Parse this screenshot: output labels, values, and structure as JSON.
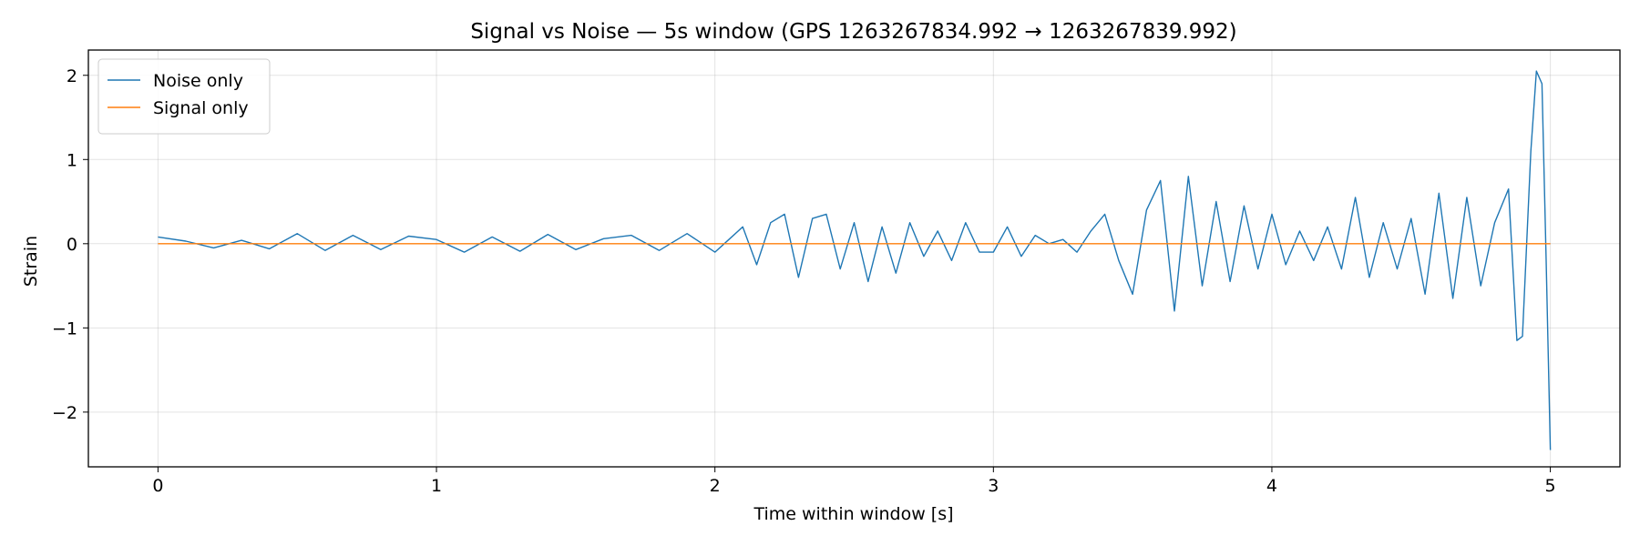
{
  "chart_data": {
    "type": "line",
    "title": "Signal vs Noise — 5s window (GPS 1263267834.992 → 1263267839.992)",
    "xlabel": "Time within window [s]",
    "ylabel": "Strain",
    "xlim": [
      -0.25,
      5.25
    ],
    "ylim": [
      -2.65,
      2.3
    ],
    "xticks": [
      0,
      1,
      2,
      3,
      4,
      5
    ],
    "xtick_labels": [
      "0",
      "1",
      "2",
      "3",
      "4",
      "5"
    ],
    "yticks": [
      2,
      1,
      0,
      -1,
      -2
    ],
    "ytick_labels": [
      "2",
      "1",
      "0",
      "−1",
      "−2"
    ],
    "grid": true,
    "legend_position": "top-left",
    "series": [
      {
        "name": "Noise only",
        "color": "#1f77b4",
        "x": [
          0.0,
          0.1,
          0.2,
          0.3,
          0.4,
          0.5,
          0.6,
          0.7,
          0.8,
          0.9,
          1.0,
          1.1,
          1.2,
          1.3,
          1.4,
          1.5,
          1.6,
          1.7,
          1.8,
          1.9,
          2.0,
          2.05,
          2.1,
          2.15,
          2.2,
          2.25,
          2.3,
          2.35,
          2.4,
          2.45,
          2.5,
          2.55,
          2.6,
          2.65,
          2.7,
          2.75,
          2.8,
          2.85,
          2.9,
          2.95,
          3.0,
          3.05,
          3.1,
          3.15,
          3.2,
          3.25,
          3.3,
          3.35,
          3.4,
          3.45,
          3.5,
          3.55,
          3.6,
          3.65,
          3.7,
          3.75,
          3.8,
          3.85,
          3.9,
          3.95,
          4.0,
          4.05,
          4.1,
          4.15,
          4.2,
          4.25,
          4.3,
          4.35,
          4.4,
          4.45,
          4.5,
          4.55,
          4.6,
          4.65,
          4.7,
          4.75,
          4.8,
          4.85,
          4.88,
          4.9,
          4.93,
          4.95,
          4.97,
          4.985,
          5.0
        ],
        "y": [
          0.08,
          0.03,
          -0.05,
          0.04,
          -0.06,
          0.12,
          -0.08,
          0.1,
          -0.07,
          0.09,
          0.05,
          -0.1,
          0.08,
          -0.09,
          0.11,
          -0.07,
          0.06,
          0.1,
          -0.08,
          0.12,
          -0.1,
          0.05,
          0.2,
          -0.25,
          0.25,
          0.35,
          -0.4,
          0.3,
          0.35,
          -0.3,
          0.25,
          -0.45,
          0.2,
          -0.35,
          0.25,
          -0.15,
          0.15,
          -0.2,
          0.25,
          -0.1,
          -0.1,
          0.2,
          -0.15,
          0.1,
          0.0,
          0.05,
          -0.1,
          0.15,
          0.35,
          -0.2,
          -0.6,
          0.4,
          0.75,
          -0.8,
          0.8,
          -0.5,
          0.5,
          -0.45,
          0.45,
          -0.3,
          0.35,
          -0.25,
          0.15,
          -0.2,
          0.2,
          -0.3,
          0.55,
          -0.4,
          0.25,
          -0.3,
          0.3,
          -0.6,
          0.6,
          -0.65,
          0.55,
          -0.5,
          0.25,
          0.65,
          -1.15,
          -1.1,
          1.1,
          2.05,
          1.9,
          -0.2,
          -2.45
        ]
      },
      {
        "name": "Signal only",
        "color": "#ff7f0e",
        "x": [
          0,
          5
        ],
        "y": [
          0,
          0
        ]
      }
    ]
  }
}
